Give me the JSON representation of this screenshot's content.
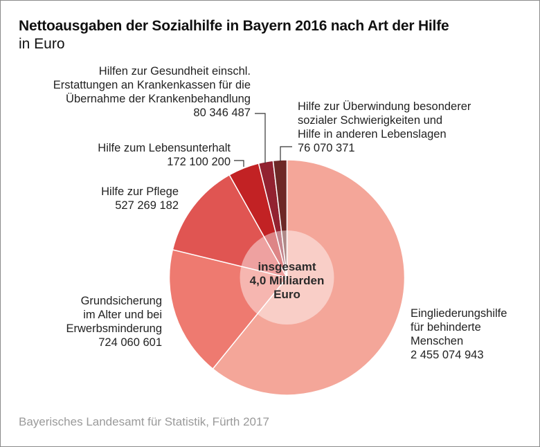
{
  "header": {
    "title": "Nettoausgaben der Sozialhilfe in Bayern 2016 nach Art der Hilfe",
    "subtitle": "in Euro"
  },
  "footer": {
    "source": "Bayerisches Landesamt für Statistik, Fürth 2017"
  },
  "chart_data": {
    "type": "pie",
    "variant": "donut-with-translucent-center",
    "title": "Nettoausgaben der Sozialhilfe in Bayern 2016 nach Art der Hilfe",
    "subtitle": "in Euro",
    "start": "top",
    "direction": "clockwise",
    "center_label": [
      "insgesamt",
      "4,0 Milliarden",
      "Euro"
    ],
    "slices": [
      {
        "name": "Eingliederungshilfe für behinderte Menschen",
        "label_lines": [
          "Eingliederungshilfe",
          "für behinderte",
          "Menschen"
        ],
        "value": 2455074943,
        "value_label": "2 455 074 943",
        "color": "#f4a699"
      },
      {
        "name": "Grundsicherung im Alter und bei Erwerbsminderung",
        "label_lines": [
          "Grundsicherung",
          "im Alter und bei",
          "Erwerbsminderung"
        ],
        "value": 724060601,
        "value_label": "724 060 601",
        "color": "#ee7a70"
      },
      {
        "name": "Hilfe zur Pflege",
        "label_lines": [
          "Hilfe zur Pflege"
        ],
        "value": 527269182,
        "value_label": "527 269 182",
        "color": "#e05552"
      },
      {
        "name": "Hilfe zum Lebensunterhalt",
        "label_lines": [
          "Hilfe zum Lebensunterhalt"
        ],
        "value": 172100200,
        "value_label": "172 100 200",
        "color": "#c22224"
      },
      {
        "name": "Hilfen zur Gesundheit einschl. Erstattungen an Krankenkassen für die Übernahme der Krankenbehandlung",
        "label_lines": [
          "Hilfen zur Gesundheit einschl.",
          "Erstattungen an Krankenkassen für die",
          "Übernahme der Krankenbehandlung"
        ],
        "value": 80346487,
        "value_label": "80 346 487",
        "color": "#922230"
      },
      {
        "name": "Hilfe zur Überwindung besonderer sozialer Schwierigkeiten und Hilfe in anderen Lebenslagen",
        "label_lines": [
          "Hilfe zur Überwindung besonderer",
          "sozialer Schwierigkeiten und",
          "Hilfe in anderen Lebenslagen"
        ],
        "value": 76070371,
        "value_label": "76 070 371",
        "color": "#6e2826"
      }
    ]
  }
}
